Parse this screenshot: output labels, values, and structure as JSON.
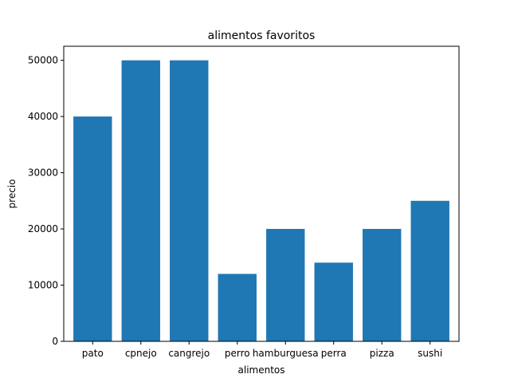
{
  "chart_data": {
    "type": "bar",
    "title": "alimentos favoritos",
    "xlabel": "alimentos",
    "ylabel": "precio",
    "categories": [
      "pato",
      "cpnejo",
      "cangrejo",
      "perro",
      "hamburguesa",
      "perra",
      "pizza",
      "sushi"
    ],
    "values": [
      40000,
      50000,
      50000,
      12000,
      20000,
      14000,
      20000,
      25000
    ],
    "ylim": [
      0,
      52500
    ],
    "yticks": [
      0,
      10000,
      20000,
      30000,
      40000,
      50000
    ],
    "ytick_labels": [
      "0",
      "10000",
      "20000",
      "30000",
      "40000",
      "50000"
    ],
    "bar_color": "#1f77b4",
    "grid": false,
    "legend": false
  }
}
